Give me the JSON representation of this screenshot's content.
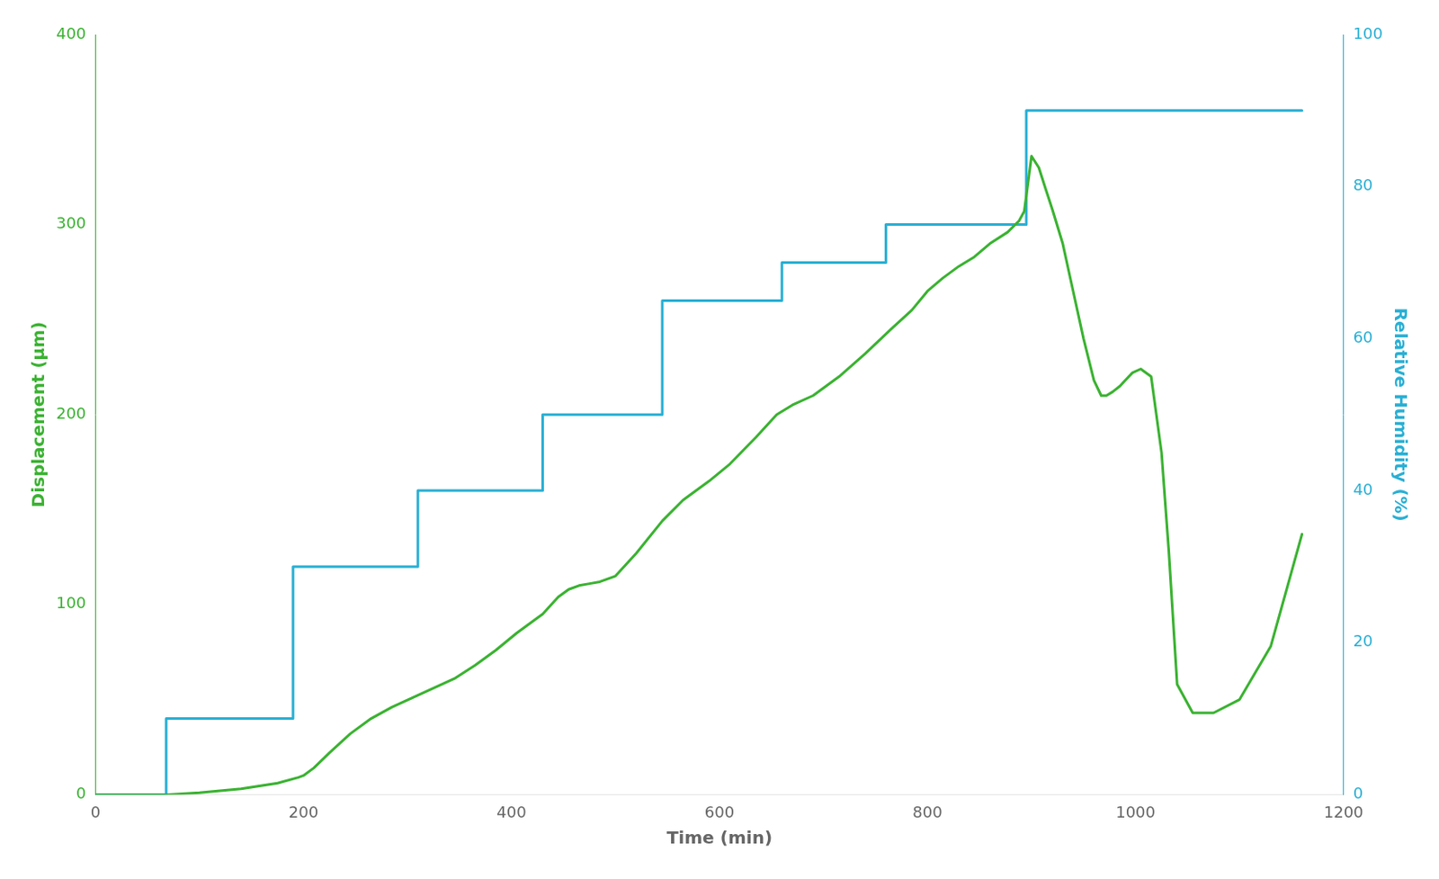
{
  "chart_data": {
    "type": "line",
    "xlabel": "Time (min)",
    "ylabel": "Displacement (μm)",
    "y2label": "Relative Humidity (%)",
    "xlim": [
      0,
      1200
    ],
    "xticks": [
      0,
      200,
      400,
      600,
      800,
      1000,
      1200
    ],
    "ylim": [
      0,
      400
    ],
    "yticks": [
      0,
      100,
      200,
      300,
      400
    ],
    "y2lim": [
      0,
      100
    ],
    "y2ticks": [
      0,
      20,
      40,
      60,
      80,
      100
    ],
    "grid": false,
    "series": [
      {
        "color": "#3ab231",
        "x": [
          0,
          55,
          70,
          100,
          140,
          175,
          195,
          200,
          210,
          225,
          245,
          265,
          285,
          305,
          325,
          345,
          365,
          385,
          405,
          430,
          445,
          455,
          465,
          475,
          485,
          500,
          520,
          545,
          565,
          590,
          610,
          635,
          655,
          670,
          690,
          715,
          740,
          765,
          785,
          800,
          815,
          830,
          845,
          860,
          877,
          888,
          893,
          900,
          907,
          914,
          920,
          930,
          940,
          950,
          960,
          967,
          972,
          978,
          985,
          990,
          997,
          1005,
          1015,
          1025,
          1032,
          1040,
          1055,
          1075,
          1100,
          1130,
          1160
        ],
        "values": [
          0,
          0,
          0,
          1,
          3,
          6,
          9,
          10,
          14,
          22,
          32,
          40,
          46,
          51,
          56,
          61,
          68,
          76,
          85,
          95,
          104,
          108,
          110,
          111,
          112,
          115,
          127,
          144,
          155,
          165,
          174,
          188,
          200,
          205,
          210,
          220,
          232,
          245,
          255,
          265,
          272,
          278,
          283,
          290,
          296,
          302,
          307,
          336,
          330,
          318,
          308,
          290,
          265,
          240,
          218,
          210,
          210,
          212,
          215,
          218,
          222,
          224,
          220,
          180,
          128,
          58,
          43,
          43,
          50,
          78,
          137
        ]
      },
      {
        "color": "#29afd4",
        "axis": "y2",
        "x": [
          0,
          68,
          68,
          190,
          190,
          310,
          310,
          430,
          430,
          545,
          545,
          660,
          660,
          760,
          760,
          895,
          895,
          1035,
          1035,
          1160
        ],
        "values": [
          0,
          0,
          10,
          10,
          30,
          30,
          40,
          40,
          50,
          50,
          65,
          65,
          70,
          70,
          75,
          75,
          90,
          90,
          90,
          90
        ]
      }
    ]
  }
}
